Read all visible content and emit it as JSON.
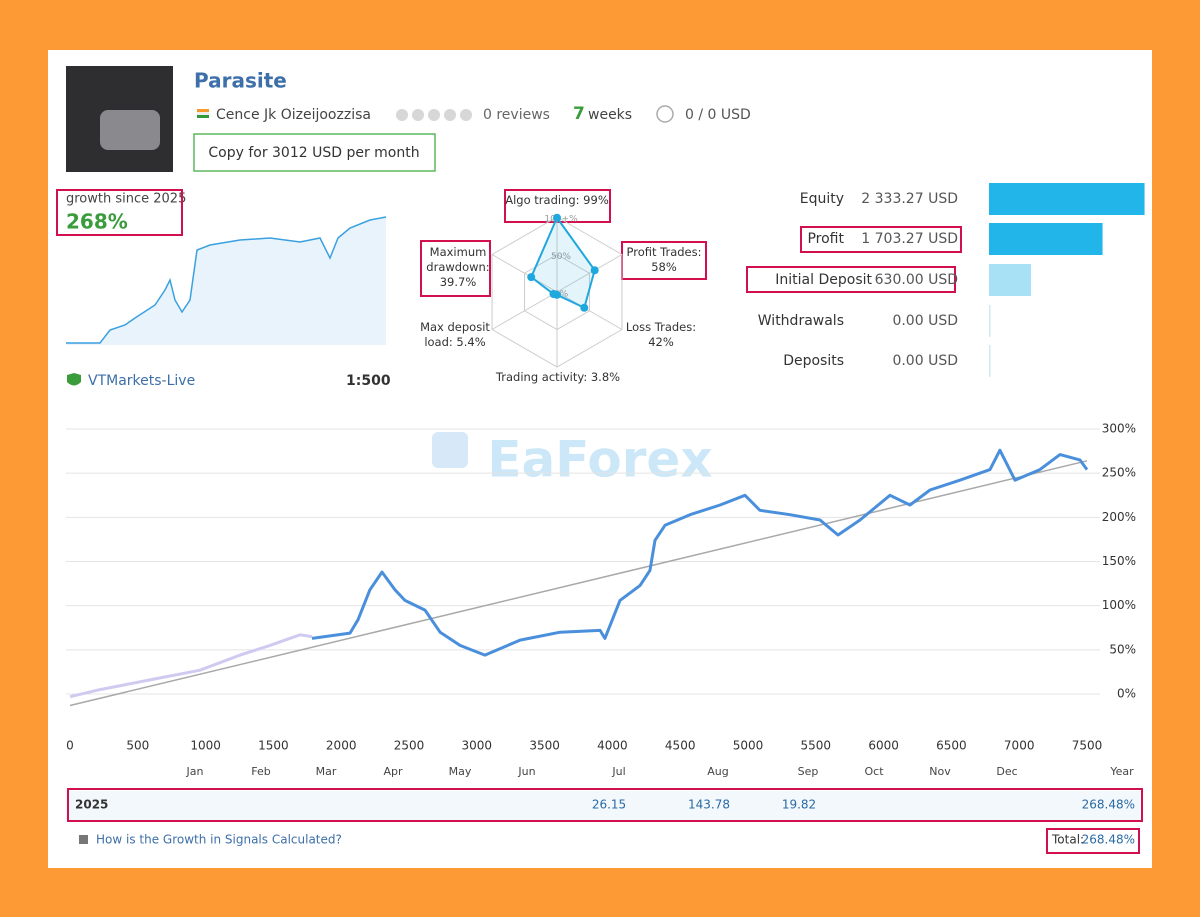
{
  "header": {
    "name": "Parasite",
    "author": "Cence Jk Oizeijoozzisa",
    "reviews": "0 reviews",
    "weeks_count": "7",
    "weeks_unit": "weeks",
    "subscribers": "0 / 0 USD",
    "copy_button": "Copy for 3012 USD per month"
  },
  "growth": {
    "label": "growth since 2025",
    "value": "268%",
    "broker": "VTMarkets-Live",
    "leverage": "1:500"
  },
  "watermark": "EaForex",
  "chart_data": [
    {
      "type": "radar",
      "categories": [
        "Algo trading: 99%",
        "Profit Trades: 58%",
        "Loss Trades: 42%",
        "Trading activity: 3.8%",
        "Max deposit load: 5.4%",
        "Maximum drawdown: 39.7%"
      ],
      "values": [
        99,
        58,
        42,
        3.8,
        5.4,
        39.7
      ],
      "rlim": [
        0,
        100
      ],
      "rticks": [
        {
          "value": 100,
          "label": "100+%"
        },
        {
          "value": 50,
          "label": "50%"
        },
        {
          "value": 0,
          "label": "0%"
        }
      ],
      "color": "#1fa8de"
    },
    {
      "type": "hbar",
      "categories": [
        "Equity",
        "Profit",
        "Initial Deposit",
        "Withdrawals",
        "Deposits"
      ],
      "values": [
        2333.27,
        1703.27,
        630.0,
        0.0,
        0.0
      ],
      "value_labels": [
        "2 333.27 USD",
        "1 703.27 USD",
        "630.00 USD",
        "0.00 USD",
        "0.00 USD"
      ],
      "colors": [
        "#22b5ea",
        "#22b5ea",
        "#a8e0f6",
        "#cfe9f5",
        "#cfe9f5"
      ],
      "xlim": [
        0,
        2400
      ]
    },
    {
      "type": "line",
      "series": [
        {
          "color": "#cfcaf0",
          "x": [
            0,
            221,
            590,
            959,
            1254,
            1475,
            1696,
            1785
          ],
          "values": [
            -3,
            5,
            16,
            27,
            44,
            55,
            67,
            65
          ]
        },
        {
          "color": "#a9a9a9",
          "x": [
            0,
            7500
          ],
          "values": [
            -13,
            264
          ]
        },
        {
          "color": "#4a8fdc",
          "x": [
            1785,
            2065,
            2124,
            2212,
            2301,
            2397,
            2470,
            2618,
            2729,
            2876,
            3060,
            3319,
            3614,
            3909,
            3945,
            4056,
            4204,
            4277,
            4314,
            4388,
            4572,
            4794,
            4978,
            5088,
            5310,
            5531,
            5664,
            5826,
            6047,
            6195,
            6342,
            6563,
            6785,
            6858,
            6969,
            7153,
            7301,
            7448,
            7500
          ],
          "values": [
            63,
            69,
            84,
            118,
            138,
            118,
            106,
            95,
            70,
            55,
            44,
            61,
            70,
            72,
            63,
            106,
            123,
            140,
            174,
            191,
            203,
            214,
            225,
            208,
            203,
            197,
            180,
            197,
            225,
            214,
            231,
            242,
            254,
            276,
            242,
            254,
            271,
            265,
            254
          ]
        }
      ],
      "xlim": [
        0,
        7500
      ],
      "ylim": [
        -20,
        300
      ],
      "xticks": [
        0,
        500,
        1000,
        1500,
        2000,
        2500,
        3000,
        3500,
        4000,
        4500,
        5000,
        5500,
        6000,
        6500,
        7000,
        7500
      ],
      "yticks": [
        {
          "value": 0,
          "label": "0%"
        },
        {
          "value": 50,
          "label": "50%"
        },
        {
          "value": 100,
          "label": "100%"
        },
        {
          "value": 150,
          "label": "150%"
        },
        {
          "value": 200,
          "label": "200%"
        },
        {
          "value": 250,
          "label": "250%"
        },
        {
          "value": 300,
          "label": "300%"
        }
      ],
      "grid": true,
      "month_labels": [
        "Jan",
        "Feb",
        "Mar",
        "Apr",
        "May",
        "Jun",
        "Jul",
        "Aug",
        "Sep",
        "Oct",
        "Nov",
        "Dec",
        "Year"
      ]
    }
  ],
  "year_table": {
    "year": "2025",
    "months": [
      "26.15",
      "143.78",
      "19.82"
    ],
    "total": "268.48%"
  },
  "footer": {
    "link": "How is the Growth in Signals Calculated?",
    "total_label": "Total:",
    "total_value": "268.48%"
  }
}
